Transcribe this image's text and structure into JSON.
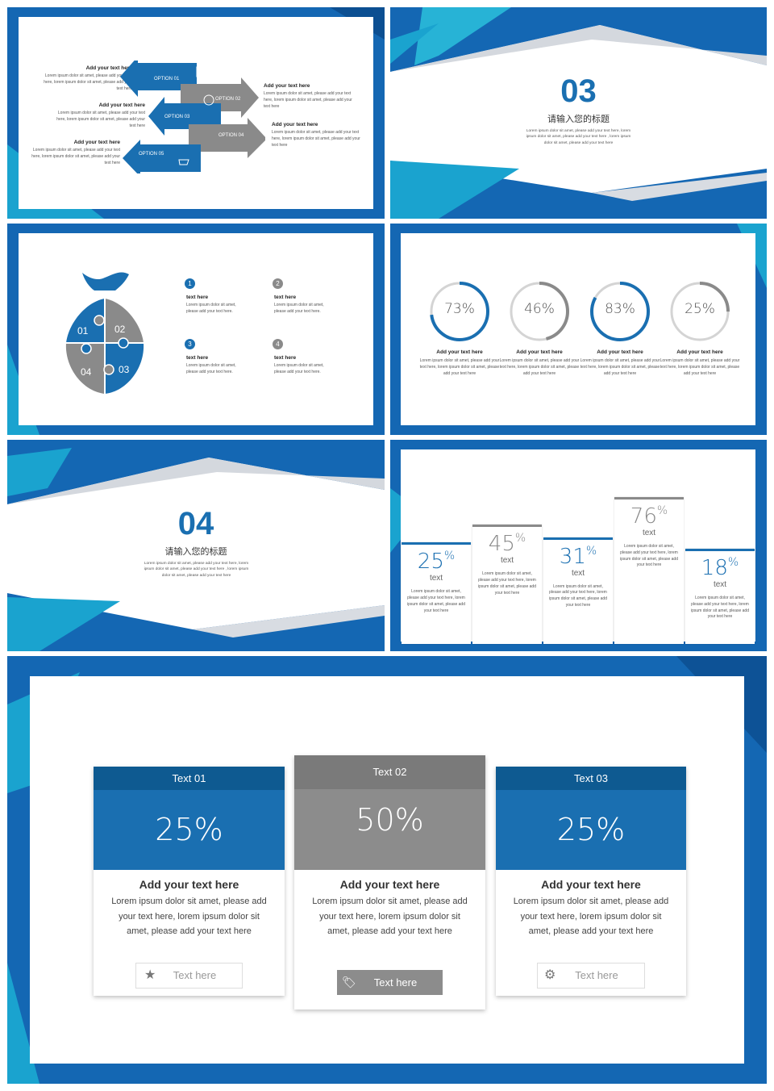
{
  "slide1": {
    "blocks": [
      {
        "title": "Add your  text here",
        "text": "Lorem ipsum dolor sit amet, please add your text here, lorem ipsum dolor sit amet, please add your text here"
      },
      {
        "title": "Add your  text here",
        "text": "Lorem ipsum dolor sit amet, please add your text here, lorem ipsum dolor sit amet, please add your text here"
      },
      {
        "title": "Add your  text here",
        "text": "Lorem ipsum dolor sit amet, please add your text here, lorem ipsum dolor sit amet, please add your text here"
      },
      {
        "title": "Add your  text here",
        "text": "Lorem ipsum dolor sit amet, please add your text here, lorem ipsum dolor sit amet, please add your text here"
      },
      {
        "title": "Add your  text here",
        "text": "Lorem ipsum dolor sit amet, please add your text here, lorem ipsum dolor sit amet, please add your text here"
      }
    ],
    "options": [
      "OPTION 01",
      "OPTION 02",
      "OPTION 03",
      "OPTION 04",
      "OPTION 05"
    ]
  },
  "slide2": {
    "number": "03",
    "title": "请输入您的标题",
    "text": "Lorem ipsum dolor sit amet, please add your text here, lorem ipsum dolor sit amet, please add your text here , lorem ipsum dolor sit amet, please add your text here"
  },
  "slide3": {
    "pieces": [
      "01",
      "02",
      "03",
      "04"
    ],
    "items": [
      {
        "num": "1",
        "title": "text here",
        "text": "Lorem ipsum dolor sit amet, please add your text here."
      },
      {
        "num": "2",
        "title": "text here",
        "text": "Lorem ipsum dolor sit amet, please add your text here."
      },
      {
        "num": "3",
        "title": "text here",
        "text": "Lorem ipsum dolor sit amet, please add your text here."
      },
      {
        "num": "4",
        "title": "text here",
        "text": "Lorem ipsum dolor sit amet, please add your text here."
      }
    ]
  },
  "slide4": {
    "rings": [
      {
        "label": "73%",
        "value": 73,
        "color": "#1a6fb1",
        "title": "Add your  text here",
        "text": "Lorem ipsum dolor sit amet, please add your text here, lorem ipsum dolor sit amet, please add your text here"
      },
      {
        "label": "46%",
        "value": 46,
        "color": "#8a8a8a",
        "title": "Add your  text here",
        "text": "Lorem ipsum dolor sit amet, please add your text here, lorem ipsum dolor sit amet, please add your text here"
      },
      {
        "label": "83%",
        "value": 83,
        "color": "#1a6fb1",
        "title": "Add your  text here",
        "text": "Lorem ipsum dolor sit amet, please add your text here, lorem ipsum dolor sit amet, please add your text here"
      },
      {
        "label": "25%",
        "value": 25,
        "color": "#8a8a8a",
        "title": "Add your  text here",
        "text": "Lorem ipsum dolor sit amet, please add your text here, lorem ipsum dolor sit amet, please add your text here"
      }
    ]
  },
  "slide5": {
    "number": "04",
    "title": "请输入您的标题",
    "text": "Lorem ipsum dolor sit amet, please add your text here, lorem ipsum dolor sit amet, please add your text here , lorem ipsum dolor sit amet, please add your text here"
  },
  "slide6": {
    "columns": [
      {
        "value": "25",
        "unit": "%",
        "label": "text",
        "text": "Lorem ipsum dolor sit amet, please add your text here, lorem ipsum dolor sit amet, please add your text here"
      },
      {
        "value": "45",
        "unit": "%",
        "label": "text",
        "text": "Lorem ipsum dolor sit amet, please add your text here, lorem ipsum dolor sit amet, please add your text here"
      },
      {
        "value": "31",
        "unit": "%",
        "label": "text",
        "text": "Lorem ipsum dolor sit amet, please add your text here, lorem ipsum dolor sit amet, please add your text here"
      },
      {
        "value": "76",
        "unit": "%",
        "label": "text",
        "text": "Lorem ipsum dolor sit amet, please add your text here, lorem ipsum dolor sit amet, please add your text here"
      },
      {
        "value": "18",
        "unit": "%",
        "label": "text",
        "text": "Lorem ipsum dolor sit amet, please add your text here, lorem ipsum dolor sit amet, please add your text here"
      }
    ]
  },
  "slide7": {
    "cards": [
      {
        "header": "Text 01",
        "value": "25%",
        "title": "Add your  text here",
        "text": "Lorem ipsum dolor sit amet, please add your text here, lorem ipsum dolor sit amet, please add your text here",
        "button": "Text here",
        "icon": "star-icon"
      },
      {
        "header": "Text 02",
        "value": "50%",
        "title": "Add your  text here",
        "text": "Lorem ipsum dolor sit amet, please add your text here, lorem ipsum dolor sit amet, please add your text here",
        "button": "Text here",
        "icon": "tag-icon"
      },
      {
        "header": "Text 03",
        "value": "25%",
        "title": "Add your  text here",
        "text": "Lorem ipsum dolor sit amet, please add your text here, lorem ipsum dolor sit amet, please add your text here",
        "button": "Text here",
        "icon": "gear-icon"
      }
    ]
  },
  "colors": {
    "blue": "#1a6fb1",
    "dark_blue": "#0e5a91",
    "grey": "#8a8a8a",
    "dark_grey": "#7a7a7a"
  }
}
